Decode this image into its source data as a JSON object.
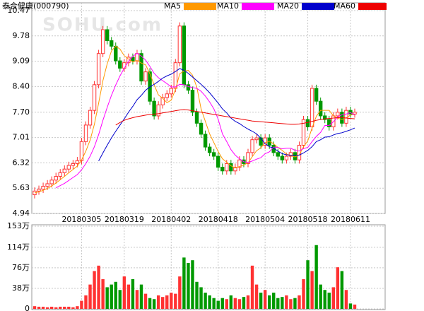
{
  "chart_data": {
    "type": "candlestick",
    "title": "泰合健康(000790)",
    "watermark": "SOHU.com",
    "categories": [
      null,
      null,
      null,
      null,
      null,
      null,
      null,
      null,
      null,
      null,
      null,
      "20180305",
      null,
      null,
      null,
      null,
      null,
      null,
      null,
      null,
      null,
      "20180319",
      null,
      null,
      null,
      null,
      null,
      null,
      null,
      null,
      null,
      null,
      "20180402",
      null,
      null,
      null,
      null,
      null,
      null,
      null,
      null,
      null,
      null,
      "20180418",
      null,
      null,
      null,
      null,
      null,
      null,
      null,
      null,
      null,
      null,
      "20180504",
      null,
      null,
      null,
      null,
      null,
      null,
      null,
      null,
      null,
      "20180518",
      null,
      null,
      null,
      null,
      null,
      null,
      null,
      null,
      null,
      "20180611",
      null
    ],
    "open": [
      5.45,
      5.55,
      5.6,
      5.68,
      5.75,
      5.85,
      5.95,
      6.05,
      6.15,
      6.25,
      6.3,
      6.38,
      6.9,
      7.35,
      7.75,
      8.45,
      9.3,
      9.95,
      9.65,
      9.5,
      9.1,
      8.9,
      9.05,
      9.2,
      9.1,
      9.3,
      8.55,
      8.8,
      8.0,
      7.6,
      7.9,
      8.1,
      8.2,
      8.35,
      9.05,
      10.05,
      8.45,
      8.3,
      7.7,
      7.4,
      7.1,
      6.75,
      6.6,
      6.5,
      6.2,
      6.1,
      6.3,
      6.1,
      6.2,
      6.4,
      6.3,
      6.6,
      6.95,
      7.0,
      6.8,
      7.0,
      6.8,
      6.6,
      6.5,
      6.4,
      6.5,
      6.6,
      6.4,
      6.8,
      7.5,
      7.3,
      8.35,
      8.0,
      7.6,
      7.5,
      7.3,
      7.6,
      7.7,
      7.4,
      7.75,
      7.65
    ],
    "high": [
      5.65,
      5.7,
      5.78,
      5.85,
      5.95,
      6.05,
      6.15,
      6.25,
      6.35,
      6.4,
      6.48,
      7.0,
      7.45,
      7.85,
      8.55,
      9.4,
      10.05,
      10.05,
      9.75,
      9.6,
      9.2,
      9.15,
      9.3,
      9.3,
      9.4,
      9.4,
      8.9,
      8.9,
      8.1,
      8.0,
      8.2,
      8.3,
      8.45,
      9.15,
      10.15,
      10.15,
      8.55,
      8.4,
      7.8,
      7.5,
      7.2,
      6.85,
      6.7,
      6.6,
      6.3,
      6.4,
      6.4,
      6.3,
      6.5,
      6.5,
      6.7,
      7.05,
      7.1,
      7.1,
      7.1,
      7.1,
      6.9,
      6.7,
      6.6,
      6.6,
      6.7,
      6.7,
      6.9,
      7.6,
      7.6,
      8.45,
      8.45,
      8.1,
      7.7,
      7.6,
      7.7,
      7.8,
      7.8,
      7.85,
      7.85,
      7.8
    ],
    "low": [
      5.35,
      5.45,
      5.5,
      5.58,
      5.65,
      5.75,
      5.85,
      5.95,
      6.05,
      6.15,
      6.2,
      6.28,
      6.8,
      7.25,
      7.65,
      8.35,
      9.2,
      9.55,
      9.4,
      9.0,
      8.8,
      8.8,
      8.95,
      9.0,
      9.0,
      8.45,
      8.45,
      7.9,
      7.5,
      7.5,
      7.8,
      8.0,
      8.1,
      8.25,
      8.95,
      8.35,
      8.2,
      7.6,
      7.3,
      7.0,
      6.65,
      6.5,
      6.4,
      6.1,
      6.0,
      6.0,
      6.0,
      6.0,
      6.1,
      6.2,
      6.2,
      6.5,
      6.85,
      6.7,
      6.7,
      6.7,
      6.5,
      6.4,
      6.3,
      6.3,
      6.4,
      6.3,
      6.3,
      6.7,
      7.2,
      7.2,
      7.9,
      7.5,
      7.4,
      7.2,
      7.2,
      7.5,
      7.3,
      7.3,
      7.55,
      7.55
    ],
    "close": [
      5.55,
      5.6,
      5.68,
      5.75,
      5.85,
      5.95,
      6.05,
      6.15,
      6.25,
      6.3,
      6.38,
      6.9,
      7.35,
      7.75,
      8.45,
      9.3,
      9.95,
      9.65,
      9.5,
      9.1,
      8.9,
      9.05,
      9.2,
      9.1,
      9.3,
      8.55,
      8.8,
      8.0,
      7.6,
      7.9,
      8.1,
      8.2,
      8.35,
      9.05,
      10.05,
      8.45,
      8.3,
      7.7,
      7.4,
      7.1,
      6.75,
      6.6,
      6.5,
      6.2,
      6.1,
      6.3,
      6.1,
      6.2,
      6.4,
      6.3,
      6.6,
      6.95,
      7.0,
      6.8,
      7.0,
      6.8,
      6.6,
      6.5,
      6.4,
      6.5,
      6.6,
      6.4,
      6.8,
      7.5,
      7.3,
      8.35,
      8.0,
      7.6,
      7.5,
      7.3,
      7.6,
      7.7,
      7.4,
      7.75,
      7.65,
      7.7
    ],
    "up_color": "#ff3232",
    "down_color": "#009900",
    "ylim": [
      4.94,
      10.47
    ],
    "yticks": [
      4.94,
      5.63,
      6.32,
      7.01,
      {
        "value": 7.7,
        "label": "7.70"
      },
      {
        "value": 8.4,
        "label": "8.40"
      },
      9.09,
      9.78,
      10.47
    ],
    "grid": true,
    "ma": [
      {
        "name": "MA5",
        "color": "#ff9900",
        "values": [
          5.5,
          5.53,
          5.57,
          5.62,
          5.69,
          5.77,
          5.86,
          5.95,
          6.05,
          6.14,
          6.23,
          6.4,
          6.64,
          6.94,
          7.37,
          7.95,
          8.56,
          9.02,
          9.37,
          9.5,
          9.42,
          9.24,
          9.15,
          9.07,
          9.11,
          9.04,
          8.99,
          8.75,
          8.45,
          8.17,
          8.08,
          7.96,
          8.03,
          8.32,
          8.75,
          8.82,
          8.84,
          8.71,
          8.38,
          7.79,
          7.45,
          7.11,
          6.87,
          6.63,
          6.43,
          6.34,
          6.24,
          6.18,
          6.22,
          6.26,
          6.32,
          6.49,
          6.65,
          6.73,
          6.87,
          6.91,
          6.84,
          6.74,
          6.66,
          6.56,
          6.52,
          6.48,
          6.54,
          6.76,
          6.92,
          7.27,
          7.59,
          7.75,
          7.75,
          7.75,
          7.6,
          7.54,
          7.5,
          7.55,
          7.62,
          7.64
        ]
      },
      {
        "name": "MA10",
        "color": "#ff00ff",
        "values": [
          null,
          null,
          null,
          null,
          null,
          5.64,
          5.7,
          5.76,
          5.84,
          5.92,
          6.0,
          6.13,
          6.3,
          6.5,
          6.76,
          7.09,
          7.48,
          7.83,
          8.16,
          8.44,
          8.69,
          8.9,
          9.09,
          9.22,
          9.31,
          9.23,
          9.12,
          8.95,
          8.76,
          8.64,
          8.56,
          8.48,
          8.39,
          8.39,
          8.46,
          8.45,
          8.4,
          8.37,
          8.35,
          8.27,
          8.14,
          7.98,
          7.79,
          7.51,
          7.11,
          6.9,
          6.68,
          6.53,
          6.43,
          6.35,
          6.33,
          6.37,
          6.42,
          6.46,
          6.57,
          6.62,
          6.75,
          6.74,
          6.7,
          6.72,
          6.72,
          6.66,
          6.64,
          6.71,
          6.74,
          6.9,
          7.04,
          7.15,
          7.34,
          7.34,
          7.44,
          7.57,
          7.63,
          7.65,
          7.69,
          7.62
        ]
      },
      {
        "name": "MA20",
        "color": "#0000cc",
        "values": [
          null,
          null,
          null,
          null,
          null,
          null,
          null,
          null,
          null,
          null,
          null,
          null,
          null,
          null,
          null,
          6.37,
          6.59,
          6.8,
          7.0,
          7.18,
          7.35,
          7.52,
          7.7,
          7.86,
          8.04,
          8.16,
          8.3,
          8.39,
          8.46,
          8.54,
          8.63,
          8.69,
          8.74,
          8.81,
          8.89,
          8.84,
          8.76,
          8.66,
          8.56,
          8.46,
          8.35,
          8.23,
          8.09,
          7.95,
          7.79,
          7.68,
          7.54,
          7.45,
          7.39,
          7.31,
          7.24,
          7.18,
          7.11,
          6.99,
          6.84,
          6.76,
          6.72,
          6.64,
          6.57,
          6.54,
          6.53,
          6.52,
          6.53,
          6.59,
          6.66,
          6.76,
          6.9,
          6.95,
          7.02,
          7.03,
          7.08,
          7.12,
          7.14,
          7.18,
          7.22,
          7.27
        ]
      },
      {
        "name": "MA60",
        "color": "#ee0000",
        "values": [
          null,
          null,
          null,
          null,
          null,
          null,
          null,
          null,
          null,
          null,
          null,
          null,
          null,
          null,
          null,
          null,
          null,
          null,
          null,
          7.35,
          7.42,
          7.48,
          7.52,
          7.55,
          7.58,
          7.6,
          7.62,
          7.64,
          7.65,
          7.66,
          7.68,
          7.7,
          7.72,
          7.74,
          7.76,
          7.77,
          7.76,
          7.74,
          7.72,
          7.7,
          7.68,
          7.66,
          7.64,
          7.62,
          7.6,
          7.58,
          7.56,
          7.54,
          7.52,
          7.5,
          7.48,
          7.46,
          7.45,
          7.44,
          7.43,
          7.42,
          7.41,
          7.4,
          7.39,
          7.38,
          7.37,
          7.37,
          7.38,
          7.4,
          7.42,
          7.45,
          7.48,
          7.5,
          7.52,
          7.53,
          7.54,
          7.55,
          7.55,
          7.54,
          7.53,
          7.52
        ]
      }
    ],
    "volume": {
      "values": [
        5,
        4,
        4,
        3,
        4,
        3,
        4,
        4,
        4,
        3,
        5,
        15,
        25,
        45,
        70,
        80,
        55,
        40,
        45,
        50,
        35,
        60,
        45,
        55,
        35,
        45,
        28,
        20,
        18,
        25,
        22,
        25,
        30,
        28,
        60,
        95,
        85,
        90,
        50,
        40,
        30,
        25,
        20,
        15,
        20,
        18,
        25,
        20,
        18,
        22,
        25,
        80,
        45,
        30,
        35,
        25,
        30,
        20,
        22,
        25,
        18,
        20,
        25,
        55,
        90,
        70,
        118,
        45,
        35,
        30,
        40,
        77,
        70,
        35,
        10,
        8
      ],
      "ylim": [
        0,
        153
      ],
      "yticks": [
        0,
        {
          "value": 38,
          "label": "38万"
        },
        {
          "value": 76,
          "label": "76万"
        },
        {
          "value": 114,
          "label": "114万"
        },
        {
          "value": 153,
          "label": "153万"
        }
      ]
    }
  }
}
